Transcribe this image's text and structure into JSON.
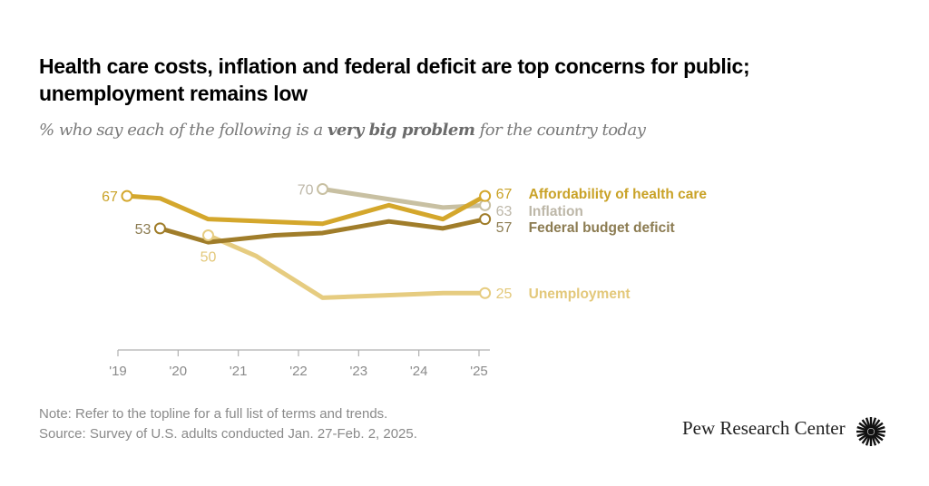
{
  "header": {
    "title": "Health care costs, inflation and federal deficit are top concerns for public; unemployment remains low",
    "subtitle_pre": "% who say each of the following is a ",
    "subtitle_bold": "very big problem",
    "subtitle_post": " for the country today"
  },
  "footer": {
    "note": "Note: Refer to the topline for a full list of terms and trends.",
    "source": "Source: Survey of U.S. adults conducted Jan. 27-Feb. 2, 2025.",
    "logo": "Pew Research Center",
    "logo_icon": "pew-sunburst-icon"
  },
  "chart_data": {
    "type": "line",
    "title": "Health care costs, inflation and federal deficit are top concerns for public; unemployment remains low",
    "subtitle": "% who say each of the following is a very big problem for the country today",
    "xlabel": "",
    "ylabel": "",
    "x_ticks": [
      2019,
      2020,
      2021,
      2022,
      2023,
      2024,
      2025
    ],
    "x_tick_labels": [
      "'19",
      "'20",
      "'21",
      "'22",
      "'23",
      "'24",
      "'25"
    ],
    "xlim": [
      2019,
      2025.1
    ],
    "ylim": [
      0,
      75
    ],
    "grid": false,
    "legend": "direct-labels-right",
    "series": [
      {
        "name": "Affordability of health care",
        "color": "#d4a72c",
        "label_color": "#c9a227",
        "x": [
          2019.15,
          2019.7,
          2020.5,
          2022.4,
          2023.5,
          2024.4,
          2025.1
        ],
        "values": [
          67,
          66,
          57,
          55,
          63,
          57,
          67
        ],
        "start_label": "67",
        "end_label": "67"
      },
      {
        "name": "Inflation",
        "color": "#c8c0a2",
        "label_color": "#bdb7a8",
        "x": [
          2022.4,
          2024.4,
          2025.1
        ],
        "values": [
          70,
          62,
          63
        ],
        "start_label": "70",
        "end_label": "63"
      },
      {
        "name": "Federal budget deficit",
        "color": "#a07d2a",
        "label_color": "#8c7c52",
        "x": [
          2019.7,
          2020.5,
          2021.6,
          2022.4,
          2023.5,
          2024.4,
          2025.1
        ],
        "values": [
          53,
          47,
          50,
          51,
          56,
          53,
          57
        ],
        "start_label": "53",
        "end_label": "57"
      },
      {
        "name": "Unemployment",
        "color": "#e6cc80",
        "label_color": "#e3c87a",
        "x": [
          2020.5,
          2021.3,
          2022.4,
          2024.4,
          2025.1
        ],
        "values": [
          50,
          41,
          23,
          25,
          25
        ],
        "start_label": "50",
        "end_label": "25"
      }
    ]
  }
}
